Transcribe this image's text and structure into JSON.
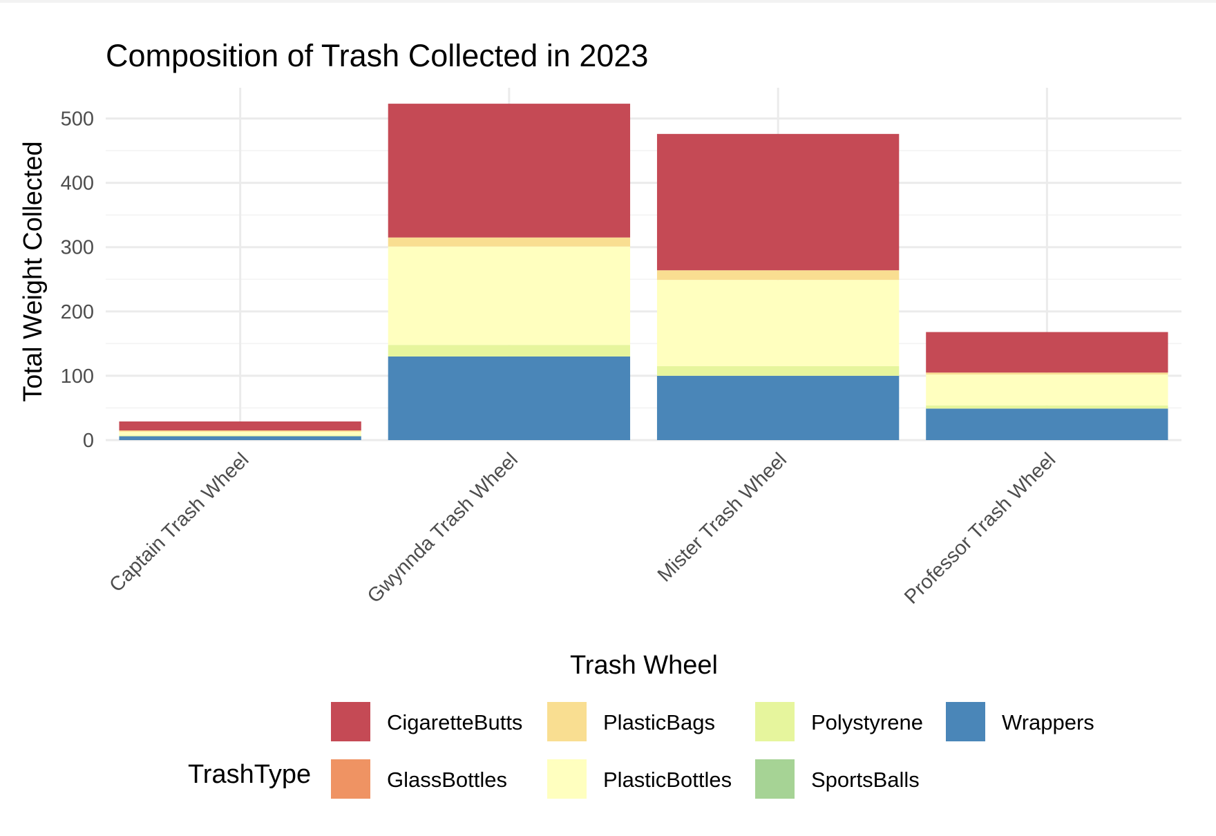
{
  "chart_data": {
    "type": "bar",
    "stacked": true,
    "title": "Composition of Trash Collected in 2023",
    "xlabel": "Trash Wheel",
    "ylabel": "Total Weight Collected",
    "ylim": [
      0,
      550
    ],
    "yticks": [
      0,
      100,
      200,
      300,
      400,
      500
    ],
    "grid": true,
    "legend_position": "bottom",
    "legend_title": "TrashType",
    "categories": [
      "Captain Trash Wheel",
      "Gwynnda Trash Wheel",
      "Mister Trash Wheel",
      "Professor Trash Wheel"
    ],
    "series": [
      {
        "name": "Wrappers",
        "color": "#4a86b8",
        "values": [
          6,
          130,
          100,
          49
        ]
      },
      {
        "name": "SportsBalls",
        "color": "#a6d395",
        "values": [
          0,
          0,
          0,
          0
        ]
      },
      {
        "name": "Polystyrene",
        "color": "#e6f59d",
        "values": [
          1,
          18,
          15,
          5
        ]
      },
      {
        "name": "PlasticBottles",
        "color": "#ffffbf",
        "values": [
          6,
          153,
          134,
          48
        ]
      },
      {
        "name": "PlasticBags",
        "color": "#f9de91",
        "values": [
          2,
          14,
          15,
          3
        ]
      },
      {
        "name": "GlassBottles",
        "color": "#ef9363",
        "values": [
          0,
          0,
          0,
          0
        ]
      },
      {
        "name": "CigaretteButts",
        "color": "#c54a55",
        "values": [
          14,
          208,
          212,
          63
        ]
      }
    ],
    "legend_order": [
      "CigaretteButts",
      "GlassBottles",
      "PlasticBags",
      "PlasticBottles",
      "Polystyrene",
      "SportsBalls",
      "Wrappers"
    ]
  }
}
